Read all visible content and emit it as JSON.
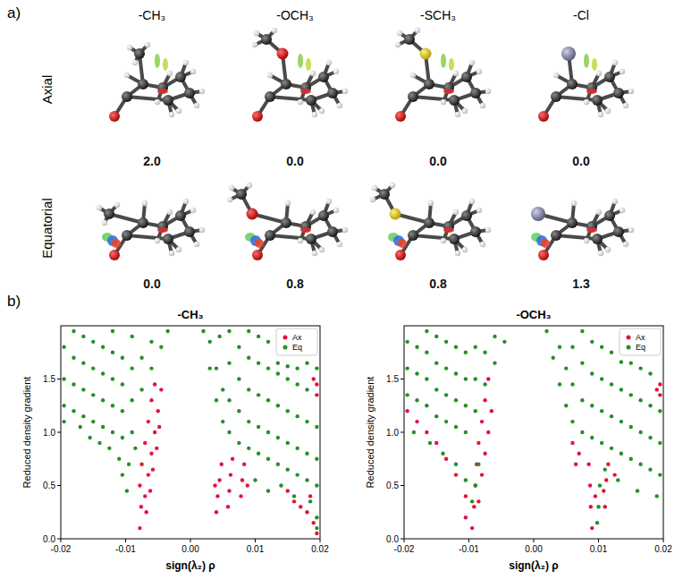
{
  "panel_labels": [
    "a)",
    "b)"
  ],
  "molecules": {
    "columns": [
      "-CH₃",
      "-OCH₃",
      "-SCH₃",
      "-Cl"
    ],
    "rows": [
      {
        "label": "Axial",
        "energies": [
          "2.0",
          "0.0",
          "0.0",
          "0.0"
        ]
      },
      {
        "label": "Equatorial",
        "energies": [
          "0.0",
          "0.8",
          "0.8",
          "1.3"
        ]
      }
    ]
  },
  "chart_data": [
    {
      "type": "scatter",
      "title": "-CH₃",
      "x_label": "sign(λ₂) ρ",
      "y_label": "Reduced density gradient",
      "xlim": [
        -0.02,
        0.02
      ],
      "ylim": [
        0,
        2
      ],
      "xticks": [
        -0.02,
        -0.01,
        {
          "value": 0,
          "label": "0.00"
        },
        0.01,
        0.02
      ],
      "yticks": [
        {
          "value": 0,
          "label": "0.0"
        },
        0.5,
        {
          "value": 1,
          "label": "1.0"
        },
        1.5
      ],
      "grid": false,
      "legend": "upper right",
      "series": [
        {
          "name": "Ax",
          "color": "#e3123c",
          "marker": "circle",
          "x": [
            -0.0078,
            -0.0076,
            -0.0078,
            -0.0075,
            -0.007,
            -0.0065,
            -0.006,
            -0.0055,
            -0.007,
            -0.0065,
            -0.006,
            -0.0055,
            -0.005,
            -0.0045,
            -0.0068,
            -0.0062,
            -0.0058,
            -0.0052,
            -0.0048,
            0.004,
            0.0042,
            0.0045,
            0.0048,
            0.0038,
            0.0058,
            0.006,
            0.0062,
            0.0065,
            0.0078,
            0.008,
            0.0083,
            0.0088,
            0.015,
            0.016,
            0.017,
            0.018,
            0.019,
            0.0195,
            0.0185,
            0.0195,
            0.0195,
            0.019
          ],
          "values": [
            0.1,
            0.3,
            0.5,
            0.7,
            0.9,
            1.1,
            1.3,
            1.45,
            0.4,
            0.6,
            0.8,
            1.0,
            1.2,
            1.4,
            0.25,
            0.45,
            0.65,
            0.85,
            1.05,
            0.25,
            0.4,
            0.55,
            0.7,
            0.5,
            0.3,
            0.45,
            0.6,
            0.75,
            0.4,
            0.55,
            0.7,
            0.5,
            0.45,
            0.35,
            0.3,
            0.25,
            0.15,
            0.05,
            0.4,
            1.35,
            1.45,
            1.5
          ]
        },
        {
          "name": "Eq",
          "color": "#268f26",
          "marker": "circle",
          "x": [
            -0.0195,
            -0.0195,
            -0.0195,
            -0.018,
            -0.018,
            -0.018,
            -0.018,
            -0.0165,
            -0.0165,
            -0.0165,
            -0.0165,
            -0.015,
            -0.015,
            -0.015,
            -0.015,
            -0.0135,
            -0.0135,
            -0.0135,
            -0.0135,
            -0.012,
            -0.012,
            -0.012,
            -0.012,
            -0.012,
            -0.0105,
            -0.0105,
            -0.0105,
            -0.0105,
            -0.009,
            -0.009,
            -0.009,
            -0.009,
            -0.0075,
            -0.0075,
            -0.006,
            -0.006,
            -0.0045,
            -0.0035,
            -0.0195,
            -0.017,
            -0.0155,
            -0.014,
            -0.0125,
            -0.011,
            -0.0105,
            -0.0098,
            -0.0095,
            -0.0085,
            0.002,
            0.003,
            0.003,
            0.004,
            0.004,
            0.0045,
            0.005,
            0.005,
            0.006,
            0.006,
            0.006,
            0.006,
            0.0075,
            0.0075,
            0.0075,
            0.0075,
            0.009,
            0.009,
            0.009,
            0.009,
            0.009,
            0.0105,
            0.0105,
            0.0105,
            0.0105,
            0.0105,
            0.012,
            0.012,
            0.012,
            0.012,
            0.012,
            0.0135,
            0.0135,
            0.0135,
            0.0135,
            0.0135,
            0.015,
            0.015,
            0.015,
            0.015,
            0.015,
            0.0165,
            0.0165,
            0.0165,
            0.0165,
            0.0165,
            0.018,
            0.018,
            0.018,
            0.018,
            0.018,
            0.0195,
            0.0195,
            0.0195,
            0.0195,
            0.01,
            0.012,
            0.014,
            0.016,
            0.0185,
            0.0195,
            0.0195
          ],
          "values": [
            1.25,
            1.5,
            1.8,
            1.2,
            1.45,
            1.7,
            1.95,
            1.15,
            1.4,
            1.65,
            1.9,
            1.1,
            1.35,
            1.6,
            1.85,
            1.05,
            1.3,
            1.55,
            1.8,
            1.0,
            1.25,
            1.5,
            1.75,
            1.95,
            0.95,
            1.2,
            1.45,
            1.7,
            1.0,
            1.3,
            1.6,
            1.9,
            1.4,
            1.7,
            1.6,
            1.85,
            1.8,
            1.95,
            1.1,
            1.05,
            0.95,
            0.9,
            0.85,
            0.75,
            0.6,
            0.45,
            0.7,
            0.85,
            1.95,
            1.6,
            1.85,
            1.3,
            1.6,
            1.9,
            1.1,
            1.4,
            1.0,
            1.3,
            1.65,
            1.95,
            0.9,
            1.2,
            1.5,
            1.8,
            0.85,
            1.1,
            1.4,
            1.7,
            1.95,
            0.8,
            1.05,
            1.35,
            1.65,
            1.9,
            0.75,
            1.0,
            1.3,
            1.6,
            1.85,
            0.7,
            0.95,
            1.25,
            1.55,
            1.65,
            0.65,
            0.9,
            1.2,
            1.5,
            1.62,
            0.6,
            0.85,
            1.15,
            1.45,
            1.6,
            0.55,
            0.8,
            1.1,
            1.4,
            1.65,
            0.5,
            0.75,
            1.05,
            1.6,
            0.55,
            0.45,
            0.5,
            0.4,
            0.35,
            0.2,
            0.1
          ]
        }
      ]
    },
    {
      "type": "scatter",
      "title": "-OCH₃",
      "x_label": "sign(λ₂) ρ",
      "y_label": "Reduced density gradient",
      "xlim": [
        -0.02,
        0.02
      ],
      "ylim": [
        0,
        2
      ],
      "xticks": [
        -0.02,
        -0.01,
        {
          "value": 0,
          "label": "0.00"
        },
        0.01,
        0.02
      ],
      "yticks": [
        {
          "value": 0,
          "label": "0.0"
        },
        0.5,
        {
          "value": 1,
          "label": "1.0"
        },
        1.5
      ],
      "grid": false,
      "legend": "upper right",
      "series": [
        {
          "name": "Ax",
          "color": "#e3123c",
          "marker": "circle",
          "x": [
            -0.0195,
            -0.018,
            -0.0165,
            -0.015,
            -0.0135,
            -0.012,
            -0.0095,
            -0.0092,
            -0.009,
            -0.0088,
            -0.0085,
            -0.008,
            -0.0075,
            -0.007,
            -0.0105,
            -0.0085,
            -0.008,
            -0.0075,
            -0.007,
            -0.0065,
            -0.0105,
            0.009,
            0.0088,
            0.0087,
            0.0085,
            0.0095,
            0.011,
            0.0108,
            0.0112,
            0.0115,
            0.0125,
            0.006,
            0.0065,
            0.007,
            0.0195,
            0.0195,
            0.019
          ],
          "values": [
            1.2,
            1.1,
            1.0,
            0.9,
            0.75,
            0.6,
            0.1,
            0.3,
            0.5,
            0.7,
            0.9,
            1.1,
            1.3,
            1.5,
            0.4,
            0.35,
            0.6,
            0.8,
            1.0,
            1.2,
            0.2,
            0.1,
            0.3,
            0.5,
            0.7,
            0.4,
            0.3,
            0.45,
            0.55,
            0.7,
            0.6,
            0.9,
            0.7,
            0.8,
            1.35,
            1.45,
            1.4
          ]
        },
        {
          "name": "Eq",
          "color": "#268f26",
          "marker": "circle",
          "x": [
            -0.0195,
            -0.0195,
            -0.0195,
            -0.018,
            -0.018,
            -0.018,
            -0.0165,
            -0.0165,
            -0.0165,
            -0.0165,
            -0.015,
            -0.015,
            -0.015,
            -0.015,
            -0.0135,
            -0.0135,
            -0.0135,
            -0.0135,
            -0.012,
            -0.012,
            -0.012,
            -0.012,
            -0.0105,
            -0.0105,
            -0.0105,
            -0.0105,
            -0.009,
            -0.009,
            -0.009,
            -0.0075,
            -0.0075,
            -0.006,
            -0.006,
            -0.0045,
            -0.0185,
            -0.016,
            -0.014,
            -0.012,
            -0.0105,
            -0.0095,
            -0.009,
            -0.0085,
            0.002,
            0.003,
            0.004,
            0.004,
            0.005,
            0.005,
            0.006,
            0.006,
            0.006,
            0.0075,
            0.0075,
            0.0075,
            0.0075,
            0.009,
            0.009,
            0.009,
            0.009,
            0.0105,
            0.0105,
            0.0105,
            0.0105,
            0.012,
            0.012,
            0.012,
            0.012,
            0.0135,
            0.0135,
            0.0135,
            0.0135,
            0.015,
            0.015,
            0.015,
            0.015,
            0.0165,
            0.0165,
            0.0165,
            0.0165,
            0.018,
            0.018,
            0.018,
            0.018,
            0.0195,
            0.0195,
            0.0195,
            0.0098,
            0.01,
            0.0102,
            0.011,
            0.013,
            0.016,
            0.019
          ],
          "values": [
            1.35,
            1.6,
            1.85,
            1.3,
            1.55,
            1.8,
            1.25,
            1.5,
            1.75,
            1.95,
            1.15,
            1.4,
            1.65,
            1.9,
            1.1,
            1.35,
            1.6,
            1.85,
            1.05,
            1.3,
            1.55,
            1.8,
            1.0,
            1.25,
            1.5,
            1.75,
            1.2,
            1.5,
            1.8,
            1.45,
            1.75,
            1.65,
            1.9,
            1.85,
            1.0,
            0.9,
            0.8,
            0.7,
            0.55,
            0.35,
            0.5,
            0.7,
            1.95,
            1.7,
            1.45,
            1.8,
            1.25,
            1.6,
            1.1,
            1.45,
            1.8,
            1.0,
            1.3,
            1.65,
            1.95,
            0.95,
            1.25,
            1.55,
            1.85,
            0.9,
            1.2,
            1.5,
            1.8,
            0.85,
            1.15,
            1.45,
            1.75,
            0.8,
            1.1,
            1.4,
            1.66,
            0.75,
            1.05,
            1.35,
            1.65,
            0.7,
            1.0,
            1.3,
            1.6,
            0.65,
            0.95,
            1.25,
            1.55,
            0.6,
            0.9,
            1.2,
            0.15,
            0.3,
            0.5,
            0.65,
            0.55,
            0.45,
            0.4
          ]
        }
      ]
    }
  ]
}
